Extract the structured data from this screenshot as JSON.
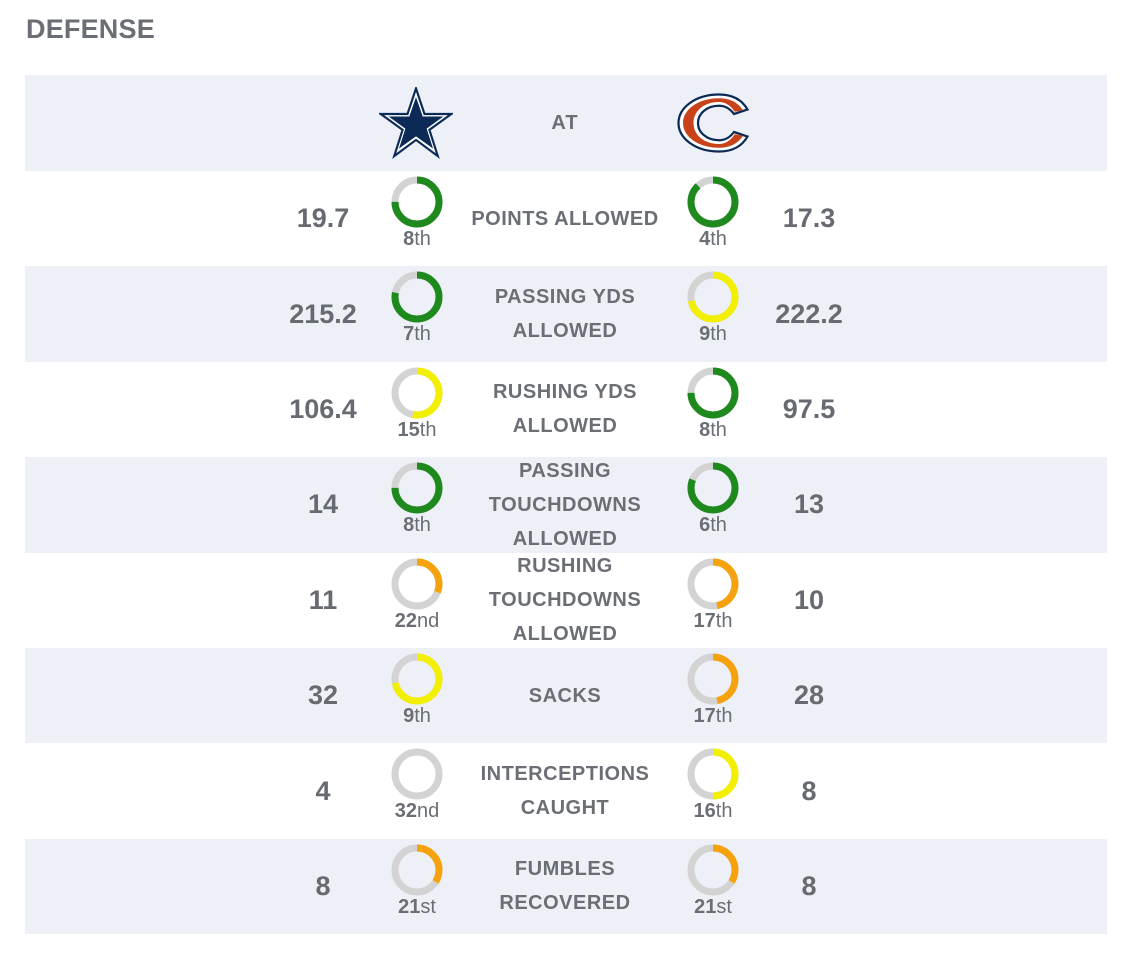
{
  "section": {
    "title": "DEFENSE"
  },
  "header": {
    "at_label": "AT",
    "away_logo": "star-logo-icon",
    "home_logo": "bear-c-logo-icon"
  },
  "colors": {
    "ring_track": "#d3d3d3",
    "green": "#1e8a1e",
    "yellow": "#f2ef00",
    "orange": "#f5a20c",
    "away_logo": "#0b2a55",
    "home_logo": "#c8431b"
  },
  "stats": [
    {
      "label": "POINTS ALLOWED",
      "away_value": "19.7",
      "away_rank_num": "8",
      "away_rank_suffix": "th",
      "away_fill": 0.75,
      "away_color": "green",
      "home_value": "17.3",
      "home_rank_num": "4",
      "home_rank_suffix": "th",
      "home_fill": 0.88,
      "home_color": "green"
    },
    {
      "label": "PASSING YDS ALLOWED",
      "away_value": "215.2",
      "away_rank_num": "7",
      "away_rank_suffix": "th",
      "away_fill": 0.78,
      "away_color": "green",
      "home_value": "222.2",
      "home_rank_num": "9",
      "home_rank_suffix": "th",
      "home_fill": 0.72,
      "home_color": "yellow"
    },
    {
      "label": "RUSHING YDS ALLOWED",
      "away_value": "106.4",
      "away_rank_num": "15",
      "away_rank_suffix": "th",
      "away_fill": 0.53,
      "away_color": "yellow",
      "home_value": "97.5",
      "home_rank_num": "8",
      "home_rank_suffix": "th",
      "home_fill": 0.75,
      "home_color": "green"
    },
    {
      "label": "PASSING TOUCHDOWNS ALLOWED",
      "away_value": "14",
      "away_rank_num": "8",
      "away_rank_suffix": "th",
      "away_fill": 0.75,
      "away_color": "green",
      "home_value": "13",
      "home_rank_num": "6",
      "home_rank_suffix": "th",
      "home_fill": 0.81,
      "home_color": "green"
    },
    {
      "label": "RUSHING TOUCHDOWNS ALLOWED",
      "away_value": "11",
      "away_rank_num": "22",
      "away_rank_suffix": "nd",
      "away_fill": 0.31,
      "away_color": "orange",
      "home_value": "10",
      "home_rank_num": "17",
      "home_rank_suffix": "th",
      "home_fill": 0.47,
      "home_color": "orange"
    },
    {
      "label": "SACKS",
      "away_value": "32",
      "away_rank_num": "9",
      "away_rank_suffix": "th",
      "away_fill": 0.72,
      "away_color": "yellow",
      "home_value": "28",
      "home_rank_num": "17",
      "home_rank_suffix": "th",
      "home_fill": 0.47,
      "home_color": "orange"
    },
    {
      "label": "INTERCEPTIONS CAUGHT",
      "away_value": "4",
      "away_rank_num": "32",
      "away_rank_suffix": "nd",
      "away_fill": 0.0,
      "away_color": "orange",
      "home_value": "8",
      "home_rank_num": "16",
      "home_rank_suffix": "th",
      "home_fill": 0.5,
      "home_color": "yellow"
    },
    {
      "label": "FUMBLES RECOVERED",
      "away_value": "8",
      "away_rank_num": "21",
      "away_rank_suffix": "st",
      "away_fill": 0.34,
      "away_color": "orange",
      "home_value": "8",
      "home_rank_num": "21",
      "home_rank_suffix": "st",
      "home_fill": 0.34,
      "home_color": "orange"
    }
  ]
}
